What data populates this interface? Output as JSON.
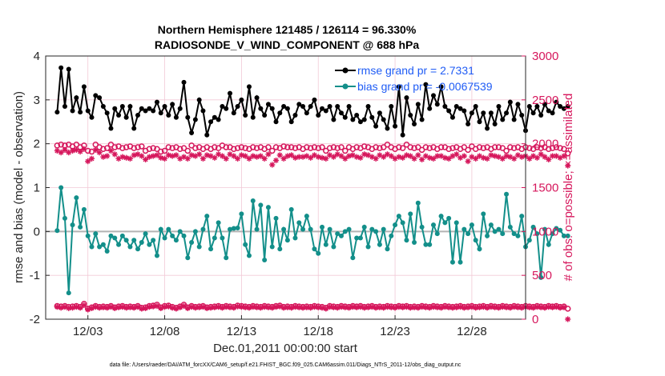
{
  "chart_data": {
    "type": "line",
    "title_line1": "Northern Hemisphere 121485 / 126114 = 96.330%",
    "title_line2": "RADIOSONDE_V_WIND_COMPONENT @ 688 hPa",
    "xlabel": "Dec.01,2011 00:00:00 start",
    "ylabel_left": "rmse and bias (model - observation)",
    "ylabel_right": "# of obs: o=possible; ×=assimilated",
    "footer": "data file: /Users/raeder/DAI/ATM_forcXX/CAM6_setup/f.e21.FHIST_BGC.f09_025.CAM6assim.011/Diags_NTrS_2011-12/obs_diag_output.nc",
    "xlim": [
      0.25,
      31.5
    ],
    "ylim_left": [
      -2,
      4
    ],
    "ylim_right": [
      0,
      3000
    ],
    "xtick_values": [
      3,
      8,
      13,
      18,
      23,
      28
    ],
    "xtick_labels": [
      "12/03",
      "12/08",
      "12/13",
      "12/18",
      "12/23",
      "12/28"
    ],
    "ytick_left": [
      "-2",
      "-1",
      "0",
      "1",
      "2",
      "3",
      "4"
    ],
    "ytick_right": [
      "0",
      "500",
      "1000",
      "1500",
      "2000",
      "2500",
      "3000"
    ],
    "colors": {
      "rmse": "#000000",
      "bias": "#138f8a",
      "obs": "#d6175c",
      "legend_text": "#1f5cf5",
      "zero_line": "#b3b3b3"
    },
    "series": [
      {
        "name": "rmse grand pr = 2.7331",
        "axis": "left",
        "values": [
          2.72,
          3.73,
          2.85,
          3.7,
          2.75,
          3.05,
          2.72,
          3.3,
          2.75,
          2.6,
          3.1,
          3.05,
          2.85,
          2.7,
          2.35,
          2.8,
          2.65,
          2.85,
          2.6,
          2.85,
          2.35,
          2.65,
          2.8,
          2.75,
          2.8,
          2.75,
          2.95,
          2.7,
          2.85,
          2.65,
          2.9,
          2.6,
          2.8,
          3.4,
          2.6,
          2.25,
          2.55,
          3.0,
          2.75,
          2.2,
          2.5,
          2.6,
          2.55,
          2.85,
          2.8,
          3.15,
          2.7,
          2.85,
          3.0,
          2.65,
          3.3,
          2.6,
          3.05,
          2.8,
          2.65,
          2.9,
          2.8,
          2.5,
          2.7,
          2.85,
          2.8,
          2.5,
          2.65,
          2.9,
          2.85,
          2.7,
          2.85,
          3.0,
          2.65,
          2.8,
          2.75,
          2.85,
          2.55,
          2.85,
          2.7,
          2.6,
          2.85,
          2.55,
          2.65,
          2.5,
          2.55,
          2.85,
          2.6,
          2.4,
          2.7,
          2.55,
          2.35,
          2.85,
          2.4,
          3.3,
          2.2,
          3.05,
          2.65,
          2.45,
          2.9,
          2.55,
          3.35,
          2.8,
          3.1,
          2.9,
          3.3,
          2.85,
          2.75,
          2.6,
          2.85,
          2.8,
          2.75,
          2.45,
          2.7,
          2.85,
          2.5,
          2.7,
          2.35,
          2.7,
          2.45,
          2.85,
          2.55,
          2.7,
          2.95,
          2.55,
          2.9,
          2.65,
          2.3,
          2.85,
          2.7,
          2.85,
          2.65,
          2.9,
          2.75,
          2.7,
          2.95,
          2.85,
          2.8,
          2.85
        ]
      },
      {
        "name": "bias grand pr = -0.0067539",
        "axis": "left",
        "values": [
          0.02,
          1.0,
          0.3,
          -1.4,
          0.15,
          0.77,
          0.1,
          0.5,
          -0.1,
          -0.35,
          -0.05,
          -0.35,
          -0.3,
          -0.45,
          -0.1,
          -0.15,
          -0.3,
          -0.1,
          -0.2,
          -0.35,
          -0.2,
          -0.4,
          -0.25,
          -0.05,
          -0.3,
          -0.2,
          -0.55,
          0.05,
          -0.15,
          0.05,
          -0.1,
          -0.2,
          0.0,
          -0.1,
          -0.6,
          -0.25,
          0.0,
          -0.35,
          0.05,
          0.35,
          -0.4,
          -0.15,
          0.2,
          -0.15,
          -0.6,
          0.05,
          0.07,
          0.08,
          0.4,
          -0.3,
          -0.55,
          0.7,
          0.05,
          0.6,
          -0.65,
          0.55,
          -0.35,
          0.3,
          -0.4,
          0.05,
          -0.2,
          0.5,
          -0.15,
          0.2,
          0.05,
          0.35,
          0.05,
          -0.4,
          -0.5,
          0.1,
          -0.3,
          0.05,
          -0.35,
          -0.05,
          -0.1,
          0.0,
          0.05,
          -0.6,
          -0.15,
          -0.15,
          0.1,
          -0.35,
          0.05,
          0.0,
          -0.3,
          0.05,
          -0.4,
          -0.1,
          0.15,
          0.35,
          0.2,
          -0.2,
          0.4,
          -0.25,
          0.65,
          0.1,
          -0.3,
          -0.3,
          0.15,
          -0.05,
          0.35,
          0.2,
          0.3,
          -0.7,
          0.2,
          -0.7,
          0.05,
          -0.05,
          0.15,
          -0.2,
          -0.4,
          0.4,
          -0.1,
          0.15,
          0.0,
          0.05,
          -0.05,
          0.85,
          0.1,
          -0.05,
          -0.1,
          0.35,
          -0.35,
          -0.2,
          0.1,
          -0.05,
          -1.05,
          0.05,
          -0.3,
          -0.05,
          0.07,
          0.03,
          -0.1,
          -0.1
        ]
      },
      {
        "name": "obs possible",
        "axis": "right",
        "values": [
          1980,
          1990,
          1980,
          1990,
          1970,
          1990,
          1960,
          1980,
          1920,
          1910,
          1990,
          1960,
          1940,
          1950,
          1990,
          1960,
          1970,
          1950,
          1960,
          1970,
          1950,
          1960,
          1970,
          1920,
          1940,
          1950,
          1940,
          1910,
          1920,
          1960,
          1950,
          1960,
          1940,
          1950,
          1920,
          1980,
          1950,
          1960,
          1940,
          1960,
          1940,
          1960,
          1950,
          1980,
          1960,
          1960,
          1940,
          1950,
          1960,
          1950,
          1940,
          1960,
          1950,
          1960,
          1940,
          1960,
          1920,
          1960,
          1950,
          1970,
          1960,
          1960,
          1950,
          1960,
          1940,
          1960,
          1950,
          1960,
          1950,
          1960,
          1920,
          1950,
          1960,
          1950,
          1960,
          1920,
          1960,
          1940,
          1960,
          1950,
          1970,
          1960,
          1940,
          1960,
          1950,
          1960,
          1990,
          1960,
          1940,
          1960,
          1950,
          1990,
          1960,
          1950,
          1960,
          1930,
          1960,
          1950,
          1960,
          1940,
          1960,
          1960,
          1940,
          1950,
          1960,
          1940,
          1960,
          1930,
          1970,
          1940,
          1960,
          1950,
          1960,
          1940,
          1960,
          1960,
          1950,
          1920,
          1960,
          1950,
          1960,
          1940,
          1960,
          1950,
          1940,
          1960,
          1950,
          1960,
          1940,
          1950,
          1960,
          1950,
          1940,
          1890
        ]
      },
      {
        "name": "obs assimilated",
        "axis": "right",
        "values": [
          1920,
          1900,
          1930,
          1900,
          1920,
          1930,
          1910,
          1940,
          1800,
          1830,
          1930,
          1900,
          1850,
          1860,
          1920,
          1880,
          1830,
          1850,
          1840,
          1830,
          1870,
          1880,
          1860,
          1820,
          1850,
          1860,
          1870,
          1840,
          1830,
          1870,
          1860,
          1870,
          1830,
          1850,
          1830,
          1870,
          1860,
          1880,
          1830,
          1870,
          1860,
          1840,
          1880,
          1860,
          1830,
          1880,
          1860,
          1830,
          1870,
          1860,
          1830,
          1860,
          1850,
          1860,
          1830,
          1880,
          1760,
          1810,
          1870,
          1830,
          1860,
          1870,
          1840,
          1850,
          1850,
          1860,
          1840,
          1870,
          1850,
          1840,
          1830,
          1870,
          1850,
          1880,
          1860,
          1830,
          1860,
          1870,
          1850,
          1840,
          1880,
          1870,
          1850,
          1830,
          1870,
          1850,
          1880,
          1860,
          1830,
          1850,
          1840,
          1870,
          1860,
          1830,
          1870,
          1820,
          1860,
          1840,
          1830,
          1860,
          1860,
          1840,
          1830,
          1860,
          1880,
          1840,
          1860,
          1800,
          1850,
          1830,
          1860,
          1840,
          1830,
          1870,
          1860,
          1850,
          1830,
          1860,
          1850,
          1830,
          1870,
          1850,
          1860,
          1830,
          1860,
          1840,
          1880,
          1850,
          1820,
          1860,
          1860,
          1840,
          1860,
          1750
        ]
      },
      {
        "name": "obs possible lower",
        "axis": "right",
        "values": [
          150,
          145,
          150,
          140,
          145,
          150,
          140,
          175,
          120,
          135,
          150,
          140,
          145,
          140,
          150,
          135,
          145,
          150,
          140,
          145,
          140,
          150,
          130,
          135,
          150,
          155,
          165,
          135,
          150,
          155,
          140,
          130,
          145,
          165,
          135,
          150,
          140,
          145,
          150,
          135,
          140,
          145,
          150,
          140,
          150,
          145,
          140,
          155,
          150,
          145,
          140,
          150,
          145,
          140,
          150,
          145,
          140,
          150,
          155,
          140,
          145,
          140,
          150,
          145,
          140,
          145,
          140,
          150,
          145,
          140,
          130,
          150,
          145,
          140,
          150,
          145,
          140,
          150,
          145,
          150,
          140,
          145,
          150,
          140,
          145,
          140,
          150,
          145,
          140,
          150,
          145,
          150,
          140,
          145,
          140,
          150,
          145,
          140,
          150,
          145,
          140,
          150,
          145,
          140,
          145,
          150,
          140,
          145,
          150,
          140,
          145,
          150,
          140,
          150,
          145,
          140,
          150,
          145,
          140,
          150,
          145,
          140,
          150,
          145,
          140,
          150,
          145,
          140,
          150,
          145,
          150,
          140,
          145,
          120
        ]
      },
      {
        "name": "obs assimilated lower",
        "axis": "right",
        "values": [
          140,
          130,
          140,
          125,
          130,
          140,
          130,
          160,
          110,
          125,
          140,
          130,
          135,
          130,
          140,
          125,
          135,
          140,
          130,
          135,
          130,
          140,
          120,
          125,
          140,
          145,
          150,
          125,
          140,
          145,
          130,
          120,
          135,
          150,
          125,
          140,
          130,
          135,
          140,
          125,
          130,
          135,
          140,
          130,
          140,
          135,
          130,
          145,
          140,
          135,
          130,
          140,
          135,
          130,
          140,
          135,
          130,
          140,
          145,
          130,
          135,
          130,
          140,
          135,
          130,
          135,
          130,
          140,
          135,
          130,
          120,
          140,
          135,
          130,
          140,
          135,
          130,
          140,
          135,
          140,
          130,
          135,
          140,
          130,
          135,
          130,
          140,
          135,
          130,
          140,
          135,
          140,
          130,
          135,
          130,
          140,
          135,
          130,
          140,
          135,
          130,
          140,
          135,
          130,
          135,
          140,
          130,
          135,
          140,
          130,
          135,
          140,
          130,
          140,
          135,
          130,
          140,
          135,
          130,
          140,
          135,
          130,
          140,
          135,
          130,
          140,
          135,
          130,
          140,
          135,
          140,
          130,
          135,
          0
        ]
      }
    ]
  }
}
